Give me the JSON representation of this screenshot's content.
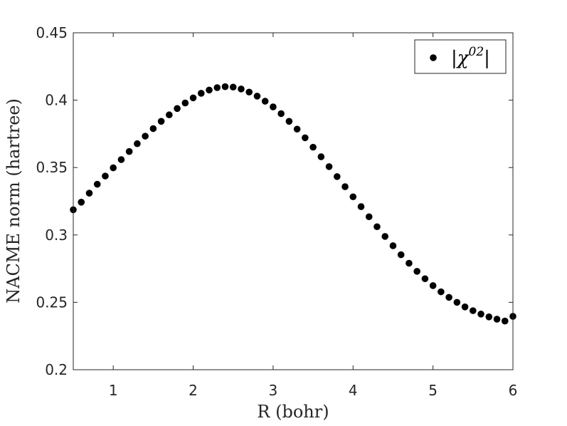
{
  "chart_data": {
    "type": "scatter",
    "xlabel": "R (bohr)",
    "ylabel": "NACME norm (hartree)",
    "xlim": [
      0.5,
      6
    ],
    "ylim": [
      0.2,
      0.45
    ],
    "xticks": [
      "1",
      "2",
      "3",
      "4",
      "5",
      "6"
    ],
    "yticks": [
      "0.2",
      "0.25",
      "0.3",
      "0.35",
      "0.4",
      "0.45"
    ],
    "grid": false,
    "legend_position": "top-right",
    "legend": {
      "prefix": "|χ",
      "superscript": "02",
      "suffix": "|"
    },
    "series": [
      {
        "name": "|χ02|",
        "color": "#000000",
        "marker": "filled-circle",
        "x": [
          0.5,
          0.6,
          0.7,
          0.8,
          0.9,
          1.0,
          1.1,
          1.2,
          1.3,
          1.4,
          1.5,
          1.6,
          1.7,
          1.8,
          1.9,
          2.0,
          2.1,
          2.2,
          2.3,
          2.4,
          2.5,
          2.6,
          2.7,
          2.8,
          2.9,
          3.0,
          3.1,
          3.2,
          3.3,
          3.4,
          3.5,
          3.6,
          3.7,
          3.8,
          3.9,
          4.0,
          4.1,
          4.2,
          4.3,
          4.4,
          4.5,
          4.6,
          4.7,
          4.8,
          4.9,
          5.0,
          5.1,
          5.2,
          5.3,
          5.4,
          5.5,
          5.6,
          5.7,
          5.8,
          5.9,
          6.0
        ],
        "y": [
          0.3187,
          0.3243,
          0.331,
          0.3376,
          0.3437,
          0.3498,
          0.3559,
          0.3619,
          0.3677,
          0.3733,
          0.3789,
          0.3843,
          0.3891,
          0.3938,
          0.3979,
          0.4017,
          0.4051,
          0.4075,
          0.4093,
          0.41,
          0.4097,
          0.4083,
          0.406,
          0.403,
          0.3992,
          0.395,
          0.39,
          0.3843,
          0.3785,
          0.3721,
          0.3651,
          0.358,
          0.3507,
          0.3433,
          0.3358,
          0.3283,
          0.321,
          0.3135,
          0.3061,
          0.2989,
          0.292,
          0.2853,
          0.279,
          0.273,
          0.2675,
          0.2624,
          0.2578,
          0.2537,
          0.25,
          0.2466,
          0.2438,
          0.2413,
          0.2392,
          0.2375,
          0.2361,
          0.2396
        ]
      }
    ]
  }
}
